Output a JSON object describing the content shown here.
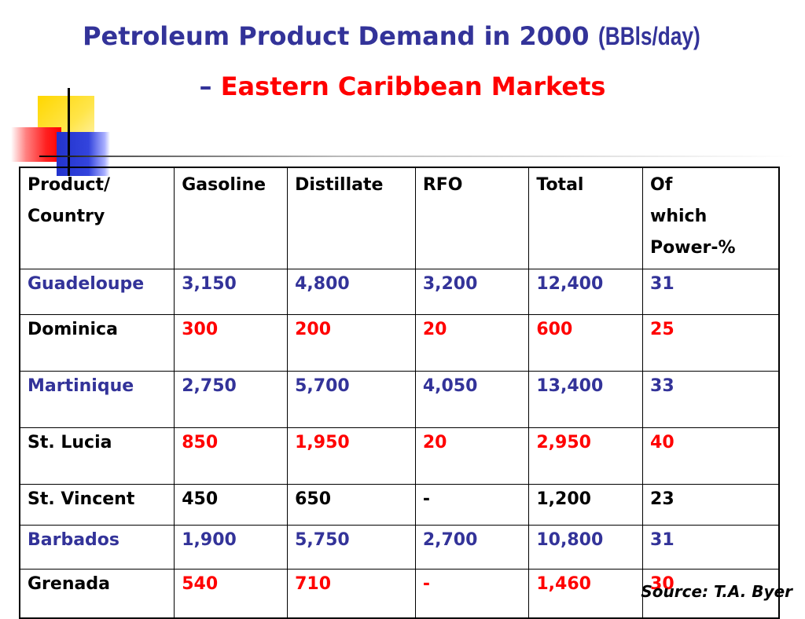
{
  "title": {
    "main": "Petroleum Product Demand in 2000",
    "unit": "(BBls/day)",
    "dash": "–",
    "subtitle": "Eastern Caribbean Markets"
  },
  "table": {
    "headers": [
      "Product/ Country",
      "Gasoline",
      "Distillate",
      "RFO",
      "Total",
      "Of which Power-%"
    ],
    "rows": [
      {
        "country": "Guadeloupe",
        "cells": [
          "3,150",
          "4,800",
          "3,200",
          "12,400",
          "31"
        ],
        "name_color": "#333399",
        "value_color": "#333399"
      },
      {
        "country": "Dominica",
        "cells": [
          "300",
          "200",
          "20",
          "600",
          "25"
        ],
        "name_color": "#000000",
        "value_color": "#ff0000"
      },
      {
        "country": "Martinique",
        "cells": [
          "2,750",
          "5,700",
          "4,050",
          "13,400",
          "33"
        ],
        "name_color": "#333399",
        "value_color": "#333399"
      },
      {
        "country": "St. Lucia",
        "cells": [
          "850",
          "1,950",
          "20",
          "2,950",
          "40"
        ],
        "name_color": "#000000",
        "value_color": "#ff0000"
      },
      {
        "country": "St. Vincent",
        "cells": [
          "450",
          "650",
          "-",
          "1,200",
          "23"
        ],
        "name_color": "#000000",
        "value_color": "#000000"
      },
      {
        "country": "Barbados",
        "cells": [
          "1,900",
          "5,750",
          "2,700",
          "10,800",
          "31"
        ],
        "name_color": "#333399",
        "value_color": "#333399"
      },
      {
        "country": "Grenada",
        "cells": [
          "540",
          "710",
          "-",
          "1,460",
          "30"
        ],
        "name_color": "#000000",
        "value_color": "#ff0000"
      }
    ]
  },
  "source": "Source: T.A. Byer",
  "colors": {
    "title_blue": "#333399",
    "accent_red": "#ff0000"
  }
}
